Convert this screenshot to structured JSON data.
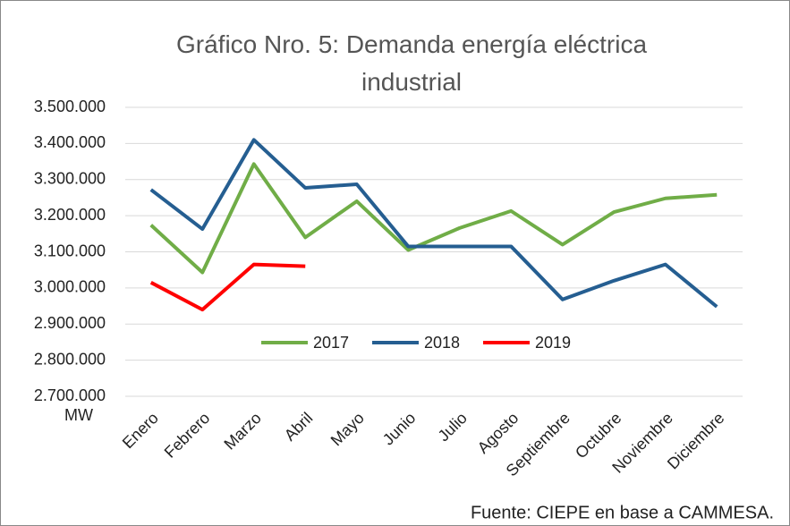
{
  "chart_data": {
    "type": "line",
    "title": "Gráfico Nro. 5: Demanda energía eléctrica industrial",
    "y_unit": "MW",
    "source": "Fuente:  CIEPE en base a CAMMESA.",
    "categories": [
      "Enero",
      "Febrero",
      "Marzo",
      "Abril",
      "Mayo",
      "Junio",
      "Julio",
      "Agosto",
      "Septiembre",
      "Octubre",
      "Noviembre",
      "Diciembre"
    ],
    "series": [
      {
        "name": "2017",
        "color": "#70ad47",
        "values": [
          3174000,
          3043000,
          3343000,
          3140000,
          3240000,
          3105000,
          3166000,
          3213000,
          3120000,
          3210000,
          3248000,
          3258000
        ]
      },
      {
        "name": "2018",
        "color": "#255e91",
        "values": [
          3272000,
          3163000,
          3410000,
          3277000,
          3287000,
          3115000,
          3115000,
          3115000,
          2968000,
          3020000,
          3065000,
          2948000
        ]
      },
      {
        "name": "2019",
        "color": "#ff0000",
        "values": [
          3015000,
          2940000,
          3065000,
          3060000,
          null,
          null,
          null,
          null,
          null,
          null,
          null,
          null
        ]
      }
    ],
    "ylim": [
      2700000,
      3500000
    ],
    "yticks": [
      {
        "value": 2700000,
        "label": "2.700.000"
      },
      {
        "value": 2800000,
        "label": "2.800.000"
      },
      {
        "value": 2900000,
        "label": "2.900.000"
      },
      {
        "value": 3000000,
        "label": "3.000.000"
      },
      {
        "value": 3100000,
        "label": "3.100.000"
      },
      {
        "value": 3200000,
        "label": "3.200.000"
      },
      {
        "value": 3300000,
        "label": "3.300.000"
      },
      {
        "value": 3400000,
        "label": "3.400.000"
      },
      {
        "value": 3500000,
        "label": "3.500.000"
      }
    ],
    "grid": true
  }
}
